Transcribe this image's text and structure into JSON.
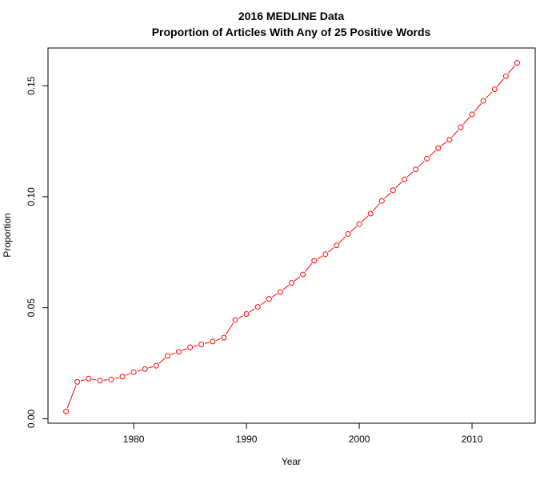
{
  "chart_data": {
    "type": "line",
    "title": "2016 MEDLINE Data",
    "subtitle": "Proportion of Articles With Any of 25 Positive Words",
    "xlabel": "Year",
    "ylabel": "Proportion",
    "xlim": [
      1972.4,
      2015.6
    ],
    "ylim": [
      -0.002,
      0.167
    ],
    "x_ticks": [
      1980,
      1990,
      2000,
      2010
    ],
    "y_ticks": [
      0.0,
      0.05,
      0.1,
      0.15
    ],
    "x_tick_labels": [
      "1980",
      "1990",
      "2000",
      "2010"
    ],
    "y_tick_labels": [
      "0.00",
      "0.05",
      "0.10",
      "0.15"
    ],
    "grid": false,
    "series": [
      {
        "color": "#ff0000",
        "marker": "open-circle",
        "line": "solid",
        "x": [
          1974,
          1975,
          1976,
          1977,
          1978,
          1979,
          1980,
          1981,
          1982,
          1983,
          1984,
          1985,
          1986,
          1987,
          1988,
          1989,
          1990,
          1991,
          1992,
          1993,
          1994,
          1995,
          1996,
          1997,
          1998,
          1999,
          2000,
          2001,
          2002,
          2003,
          2004,
          2005,
          2006,
          2007,
          2008,
          2009,
          2010,
          2011,
          2012,
          2013,
          2014
        ],
        "values": [
          0.0033,
          0.0166,
          0.0181,
          0.0172,
          0.0177,
          0.019,
          0.021,
          0.0224,
          0.0239,
          0.0283,
          0.0302,
          0.0322,
          0.0335,
          0.0348,
          0.0365,
          0.0445,
          0.0472,
          0.0504,
          0.054,
          0.0571,
          0.0612,
          0.065,
          0.0712,
          0.0741,
          0.0781,
          0.0832,
          0.0877,
          0.0924,
          0.0981,
          0.1029,
          0.1078,
          0.1123,
          0.1172,
          0.1219,
          0.1257,
          0.1313,
          0.1371,
          0.1432,
          0.1484,
          0.1543,
          0.1603
        ]
      }
    ]
  }
}
